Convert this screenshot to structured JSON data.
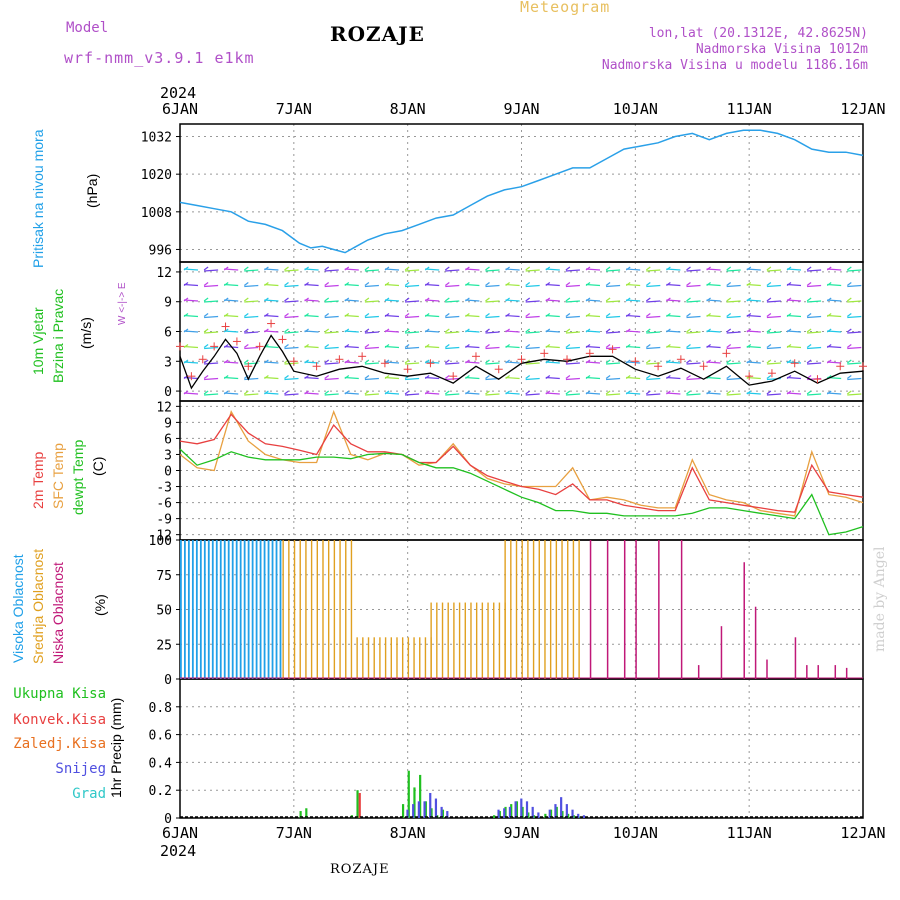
{
  "header": {
    "model_label": "Model",
    "model_run": "wrf-nmm_v3.9.1 e1km",
    "title": "ROZAJE",
    "meteogram": "Meteogram",
    "lonlat": "lon,lat (20.1312E, 42.8625N)",
    "altitude": "Nadmorska Visina 1012m",
    "model_altitude": "Nadmorska Visina u modelu 1186.16m"
  },
  "footer": {
    "location": "ROZAJE"
  },
  "axis": {
    "year": "2024",
    "dates": [
      "6JAN",
      "7JAN",
      "8JAN",
      "9JAN",
      "10JAN",
      "11JAN",
      "12JAN"
    ]
  },
  "watermark": "made by Angel",
  "panel_labels": {
    "pressure": [
      "Pritisak na nivou mora",
      "(hPa)"
    ],
    "wind": [
      "10m Vjetar",
      "Brzina i Pravac",
      "(m/s)"
    ],
    "wind_rose": "W <-|-> E",
    "temp": [
      "2m Temp",
      "SFC Temp",
      "dewpt Temp",
      "(C)"
    ],
    "cloud": [
      "Visoka Oblacnost",
      "Srednja Oblacnost",
      "Niska Oblacnost",
      "(%)"
    ],
    "precip_unit": "1hr Precip (mm)"
  },
  "precip_legend": [
    "Ukupna Kisa",
    "Konvek.Kisa",
    "Zaledj.Kisa",
    "Snijeg",
    "Grad"
  ],
  "colors": {
    "pressure": "#2aa0e8",
    "wind_speed": "#000000",
    "gust": "#e84040",
    "t2m": "#e84040",
    "tsfc": "#e8a040",
    "dewpt": "#20c020",
    "high_cloud": "#20a0e8",
    "mid_cloud": "#e0a020",
    "low_cloud": "#c01878",
    "rain_total": "#20c020",
    "rain_conv": "#e84040",
    "frz_rain": "#e87020",
    "snow": "#5050e0",
    "hail": "#30c8c8"
  },
  "chart_data": [
    {
      "type": "line",
      "title": "Pritisak na nivou mora",
      "ylabel": "(hPa)",
      "ylim": [
        992,
        1036
      ],
      "yticks": [
        996,
        1008,
        1020,
        1032
      ],
      "x": [
        0,
        0.15,
        0.3,
        0.45,
        0.6,
        0.75,
        0.9,
        1.05,
        1.15,
        1.25,
        1.35,
        1.45,
        1.55,
        1.65,
        1.8,
        1.95,
        2.1,
        2.25,
        2.4,
        2.55,
        2.7,
        2.85,
        3.0,
        3.15,
        3.3,
        3.45,
        3.6,
        3.75,
        3.9,
        4.05,
        4.2,
        4.35,
        4.5,
        4.65,
        4.8,
        4.95,
        5.1,
        5.25,
        5.4,
        5.55,
        5.7,
        5.85,
        6.0
      ],
      "series": [
        {
          "values": [
            1011,
            1010,
            1009,
            1008,
            1005,
            1004,
            1002,
            998,
            996.5,
            997,
            996,
            995,
            997,
            999,
            1001,
            1002,
            1004,
            1006,
            1007,
            1010,
            1013,
            1015,
            1016,
            1018,
            1020,
            1022,
            1022,
            1025,
            1028,
            1029,
            1030,
            1032,
            1033,
            1031,
            1033,
            1034,
            1034,
            1033,
            1031,
            1028,
            1027,
            1027,
            1026
          ]
        }
      ]
    },
    {
      "type": "line",
      "title": "10m Vjetar Brzina i Pravac",
      "ylabel": "(m/s)",
      "ylim": [
        -1,
        13
      ],
      "yticks": [
        0,
        3,
        6,
        9,
        12
      ],
      "x": [
        0,
        0.1,
        0.2,
        0.3,
        0.4,
        0.5,
        0.6,
        0.7,
        0.8,
        0.9,
        1.0,
        1.2,
        1.4,
        1.6,
        1.8,
        2.0,
        2.2,
        2.4,
        2.6,
        2.8,
        3.0,
        3.2,
        3.4,
        3.6,
        3.8,
        4.0,
        4.2,
        4.4,
        4.6,
        4.8,
        5.0,
        5.2,
        5.4,
        5.6,
        5.8,
        6.0
      ],
      "series": [
        {
          "values": [
            3.5,
            0.3,
            2.0,
            3.5,
            5.2,
            3.8,
            1.2,
            3.5,
            5.6,
            4.0,
            2.0,
            1.5,
            2.2,
            2.5,
            1.8,
            1.5,
            1.8,
            0.8,
            2.5,
            1.2,
            2.8,
            3.2,
            3.0,
            3.5,
            3.5,
            2.2,
            1.5,
            2.3,
            1.2,
            2.5,
            0.6,
            1.0,
            2.0,
            0.8,
            1.8,
            2.0
          ]
        },
        {
          "values": [
            4.5,
            1.5,
            3.2,
            4.5,
            6.5,
            5.0,
            2.5,
            4.5,
            6.8,
            5.2,
            3.0,
            2.5,
            3.2,
            3.5,
            2.8,
            2.2,
            2.8,
            1.5,
            3.5,
            2.2,
            3.2,
            3.8,
            3.2,
            3.8,
            4.2,
            3.0,
            2.5,
            3.2,
            2.5,
            3.8,
            1.5,
            1.8,
            2.8,
            1.2,
            2.5,
            2.5
          ]
        }
      ]
    },
    {
      "type": "line",
      "title": "2m Temp / SFC Temp / dewpt Temp",
      "ylabel": "(C)",
      "ylim": [
        -13,
        13
      ],
      "yticks": [
        -12,
        -9,
        -6,
        -3,
        0,
        3,
        6,
        9,
        12
      ],
      "x": [
        0,
        0.15,
        0.3,
        0.45,
        0.6,
        0.75,
        0.9,
        1.05,
        1.2,
        1.35,
        1.5,
        1.65,
        1.8,
        1.95,
        2.1,
        2.25,
        2.4,
        2.55,
        2.7,
        2.85,
        3.0,
        3.15,
        3.3,
        3.45,
        3.6,
        3.75,
        3.9,
        4.05,
        4.2,
        4.35,
        4.5,
        4.65,
        4.8,
        4.95,
        5.1,
        5.25,
        5.4,
        5.55,
        5.7,
        5.85,
        6.0
      ],
      "series": [
        {
          "name": "2m Temp",
          "values": [
            5.5,
            5.0,
            5.8,
            10.5,
            7.0,
            5.0,
            4.5,
            3.8,
            3.0,
            8.5,
            5.0,
            3.5,
            3.5,
            3.0,
            1.5,
            1.5,
            4.5,
            1.0,
            -1.0,
            -2.0,
            -3.0,
            -3.5,
            -4.5,
            -2.5,
            -5.5,
            -5.5,
            -6.5,
            -7.0,
            -7.5,
            -7.5,
            0.5,
            -5.5,
            -6.0,
            -6.5,
            -7.0,
            -7.5,
            -7.8,
            1.0,
            -4.0,
            -4.5,
            -5.0
          ]
        },
        {
          "name": "SFC Temp",
          "values": [
            3.0,
            0.5,
            0.0,
            11.0,
            5.5,
            3.0,
            2.0,
            1.5,
            1.5,
            11.0,
            3.0,
            2.0,
            3.2,
            3.0,
            1.0,
            1.5,
            5.0,
            1.0,
            -1.5,
            -2.5,
            -3.0,
            -3.0,
            -3.0,
            0.5,
            -5.5,
            -5.0,
            -5.5,
            -6.5,
            -7.0,
            -7.0,
            2.0,
            -4.5,
            -5.5,
            -6.0,
            -7.5,
            -8.0,
            -8.5,
            3.5,
            -4.5,
            -5.0,
            -6.0
          ]
        },
        {
          "name": "dewpt Temp",
          "values": [
            4.0,
            1.0,
            2.0,
            3.5,
            2.5,
            2.0,
            2.0,
            2.0,
            2.5,
            2.5,
            2.2,
            3.0,
            3.2,
            3.0,
            1.5,
            0.5,
            0.5,
            -0.5,
            -2.0,
            -3.5,
            -5.0,
            -6.0,
            -7.5,
            -7.5,
            -8.0,
            -8.0,
            -8.5,
            -8.5,
            -8.5,
            -8.5,
            -8.0,
            -7.0,
            -7.0,
            -7.5,
            -8.0,
            -8.5,
            -9.0,
            -4.5,
            -12.0,
            -11.5,
            -10.5
          ]
        }
      ]
    },
    {
      "type": "bar",
      "title": "Visoka / Srednja / Niska Oblacnost",
      "ylabel": "(%)",
      "ylim": [
        0,
        100
      ],
      "yticks": [
        0,
        25,
        50,
        75,
        100
      ],
      "series": [
        {
          "name": "Visoka Oblacnost",
          "x_range": [
            0,
            0.9
          ],
          "values": [
            100
          ]
        },
        {
          "name": "Srednja Oblacnost",
          "x_range": [
            0.9,
            3.5
          ],
          "values": [
            100,
            30,
            55,
            100
          ]
        },
        {
          "name": "Niska Oblacnost",
          "x": [
            3.6,
            3.75,
            3.9,
            4.0,
            4.2,
            4.4,
            4.55,
            4.75,
            4.95,
            5.05,
            5.15,
            5.4,
            5.5,
            5.6,
            5.75,
            5.85
          ],
          "values": [
            100,
            100,
            100,
            100,
            100,
            100,
            10,
            38,
            84,
            52,
            14,
            30,
            10,
            10,
            10,
            8
          ]
        }
      ]
    },
    {
      "type": "bar",
      "title": "1hr Precip",
      "ylabel": "(mm)",
      "ylim": [
        0,
        1.0
      ],
      "yticks": [
        0,
        0.2,
        0.4,
        0.6,
        0.8
      ],
      "x": [
        1.05,
        1.1,
        1.5,
        1.55,
        1.95,
        2.0,
        2.05,
        2.1,
        2.15,
        2.2,
        2.25,
        2.3,
        2.75,
        2.8,
        2.85,
        2.9,
        2.95,
        3.0,
        3.05,
        3.1,
        3.2,
        3.25,
        3.3,
        3.35,
        3.4,
        3.45,
        3.5
      ],
      "series": [
        {
          "name": "Ukupna Kisa",
          "values": [
            0.05,
            0.07,
            0.02,
            0.2,
            0.1,
            0.34,
            0.22,
            0.31,
            0.12,
            0.07,
            0.02,
            0.06,
            0.02,
            0.05,
            0.08,
            0.1,
            0.12,
            0.08,
            0.04,
            0.02,
            0.03,
            0.06,
            0.08,
            0.05,
            0.03,
            0.02,
            0.01
          ]
        },
        {
          "name": "Konvek.Kisa",
          "values": [
            0,
            0,
            0,
            0.18,
            0,
            0,
            0,
            0,
            0,
            0,
            0,
            0,
            0,
            0,
            0,
            0,
            0,
            0,
            0,
            0,
            0,
            0,
            0,
            0,
            0,
            0,
            0
          ]
        },
        {
          "name": "Snijeg",
          "values": [
            0,
            0,
            0,
            0,
            0.06,
            0.1,
            0.12,
            0.12,
            0.18,
            0.14,
            0.08,
            0.05,
            0.06,
            0.07,
            0.08,
            0.12,
            0.14,
            0.12,
            0.08,
            0.04,
            0.06,
            0.1,
            0.15,
            0.1,
            0.06,
            0.03,
            0.02
          ]
        }
      ]
    }
  ]
}
